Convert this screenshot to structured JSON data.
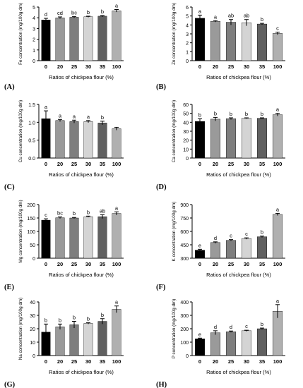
{
  "chart_data": [
    {
      "panel": "(A)",
      "type": "bar",
      "categories": [
        "0",
        "20",
        "25",
        "30",
        "35",
        "100"
      ],
      "values": [
        3.8,
        4.0,
        4.05,
        4.1,
        4.15,
        4.65
      ],
      "errors": [
        0.15,
        0.08,
        0.07,
        0.05,
        0.06,
        0.12
      ],
      "letters": [
        "d",
        "cd",
        "bc",
        "b",
        "b",
        "a"
      ],
      "ylim": [
        0,
        5
      ],
      "yticks": [
        "0",
        "1",
        "2",
        "3",
        "4",
        "5"
      ],
      "ylabel": "Fe concentration (mg/100g dm)",
      "xlabel": "Ratios of chickpea flour (%)"
    },
    {
      "panel": "(B)",
      "type": "bar",
      "categories": [
        "0",
        "20",
        "25",
        "30",
        "35",
        "100"
      ],
      "values": [
        4.75,
        4.4,
        4.3,
        4.25,
        4.1,
        3.05
      ],
      "errors": [
        0.35,
        0.08,
        0.3,
        0.35,
        0.08,
        0.15
      ],
      "letters": [
        "a",
        "a",
        "ab",
        "ab",
        "b",
        "c"
      ],
      "ylim": [
        0,
        6
      ],
      "yticks": [
        "0",
        "1",
        "2",
        "3",
        "4",
        "5",
        "6"
      ],
      "ylabel": "Zn concentration (mg/100g dm)",
      "xlabel": "Ratios of chickpea flour (%)"
    },
    {
      "panel": "(C)",
      "type": "bar",
      "categories": [
        "0",
        "20",
        "25",
        "30",
        "35",
        "100"
      ],
      "values": [
        1.1,
        1.05,
        1.02,
        1.02,
        0.98,
        0.82
      ],
      "errors": [
        0.22,
        0.03,
        0.04,
        0.03,
        0.05,
        0.04
      ],
      "letters": [
        "a",
        "a",
        "a",
        "a",
        "b",
        ""
      ],
      "ylim": [
        0,
        1.5
      ],
      "yticks": [
        "0.0",
        "0.5",
        "1.0",
        "1.5"
      ],
      "ylabel": "Cu concentration (mg/100g dm)",
      "xlabel": "Ratios of chickpea flour (%)"
    },
    {
      "panel": "(D)",
      "type": "bar",
      "categories": [
        "0",
        "20",
        "25",
        "30",
        "35",
        "100"
      ],
      "values": [
        41,
        43.5,
        44,
        44.5,
        44.5,
        48.5
      ],
      "errors": [
        3,
        2,
        1,
        0.5,
        0.5,
        1.5
      ],
      "letters": [
        "b",
        "b",
        "b",
        "b",
        "b",
        "a"
      ],
      "ylim": [
        0,
        60
      ],
      "yticks": [
        "0",
        "10",
        "20",
        "30",
        "40",
        "50",
        "60"
      ],
      "ylabel": "Ca concentration (mg/100g dm)",
      "xlabel": "Ratios of chickpea flour (%)"
    },
    {
      "panel": "(E)",
      "type": "bar",
      "categories": [
        "0",
        "20",
        "25",
        "30",
        "35",
        "100"
      ],
      "values": [
        142,
        151,
        150,
        155,
        155,
        167
      ],
      "errors": [
        5,
        3,
        2,
        2,
        7,
        6
      ],
      "letters": [
        "c",
        "bc",
        "b",
        "b",
        "ab",
        "a"
      ],
      "ylim": [
        0,
        200
      ],
      "yticks": [
        "0",
        "50",
        "100",
        "150",
        "200"
      ],
      "ylabel": "Mg concentration (mg/100g dm)",
      "xlabel": "Ratios of chickpea flour (%)"
    },
    {
      "panel": "(F)",
      "type": "bar",
      "categories": [
        "0",
        "20",
        "25",
        "30",
        "35",
        "100"
      ],
      "values": [
        390,
        475,
        500,
        520,
        540,
        790
      ],
      "errors": [
        10,
        8,
        8,
        8,
        8,
        12
      ],
      "letters": [
        "e",
        "d",
        "c",
        "c",
        "b",
        "a"
      ],
      "ylim": [
        300,
        900
      ],
      "yticks": [
        "300",
        "450",
        "600",
        "750",
        "900"
      ],
      "ylabel": "K concentration (mg/100g dm)",
      "xlabel": "Ratios of chickpea flour (%)"
    },
    {
      "panel": "(G)",
      "type": "bar",
      "categories": [
        "0",
        "20",
        "25",
        "30",
        "35",
        "100"
      ],
      "values": [
        17.5,
        21.5,
        23,
        24,
        25.5,
        34.5
      ],
      "errors": [
        6,
        2,
        2.5,
        0.5,
        2,
        2.5
      ],
      "letters": [
        "b",
        "b",
        "b",
        "b",
        "b",
        "a"
      ],
      "ylim": [
        0,
        40
      ],
      "yticks": [
        "0",
        "10",
        "20",
        "30",
        "40"
      ],
      "ylabel": "Na concentration (mg/100g dm)",
      "xlabel": "Ratios of chickpea flour (%)"
    },
    {
      "panel": "(H)",
      "type": "bar",
      "categories": [
        "0",
        "20",
        "25",
        "30",
        "35",
        "100"
      ],
      "values": [
        125,
        170,
        178,
        185,
        200,
        330
      ],
      "errors": [
        5,
        15,
        5,
        4,
        5,
        50
      ],
      "letters": [
        "e",
        "d",
        "d",
        "c",
        "b",
        "a"
      ],
      "ylim": [
        0,
        400
      ],
      "yticks": [
        "0",
        "100",
        "200",
        "300",
        "400"
      ],
      "ylabel": "P concentration (mg/100g dm)",
      "xlabel": "Ratios of chickpea flour (%)"
    }
  ],
  "bar_colors": [
    "#000000",
    "#9a9a9a",
    "#7e7e7e",
    "#d4d4d4",
    "#606060",
    "#b0b0b0"
  ]
}
